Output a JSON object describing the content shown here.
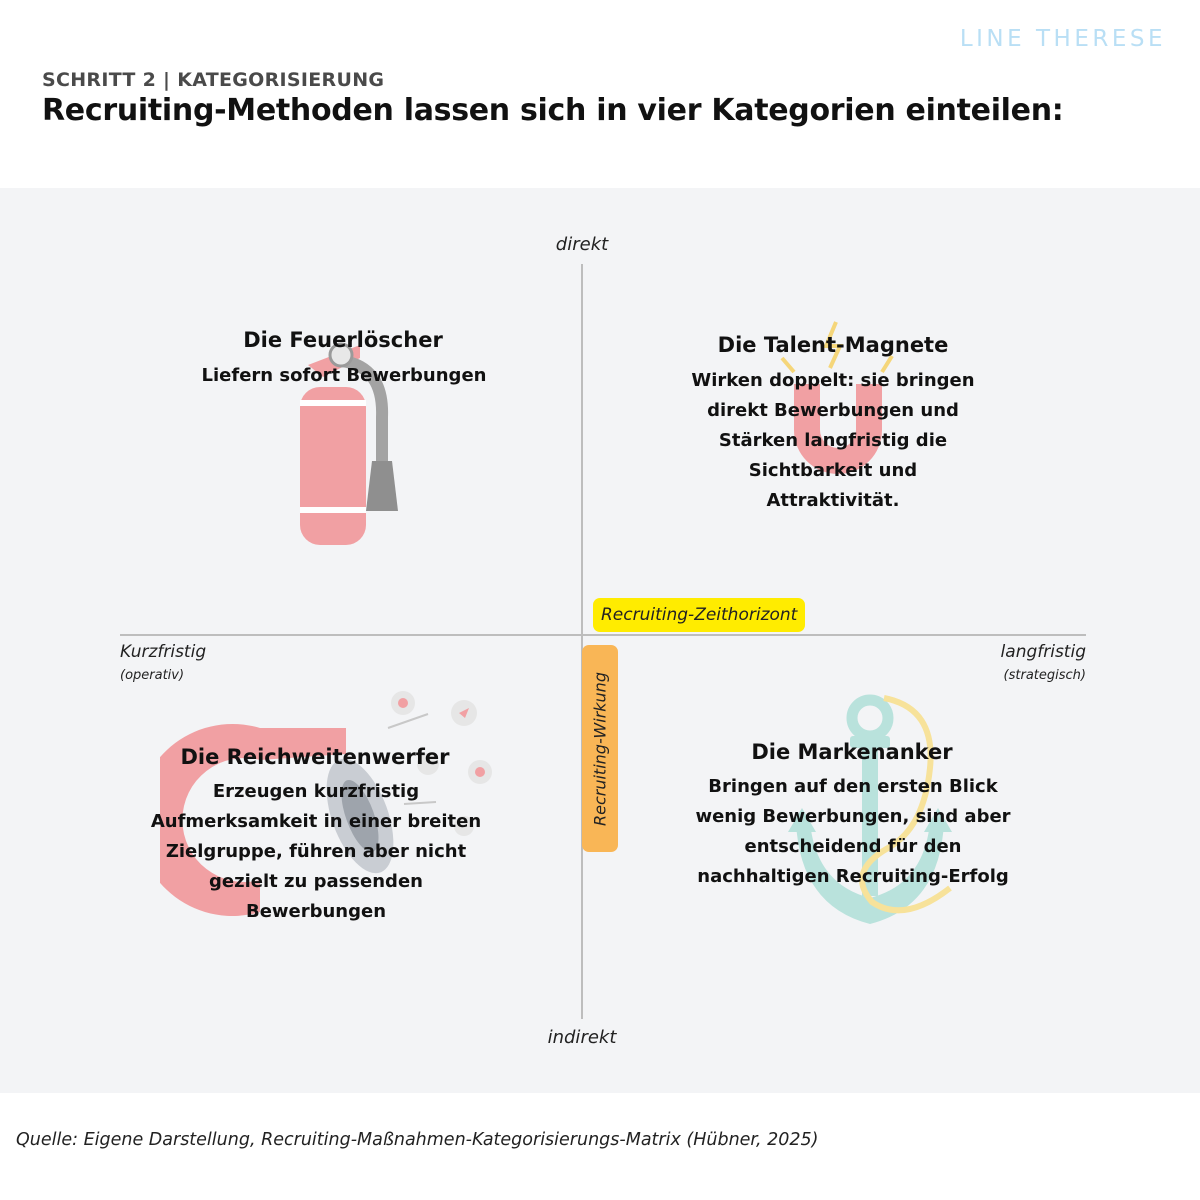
{
  "brand": "LINE THERESE",
  "step_label": "SCHRITT 2 | KATEGORISIERUNG",
  "headline": "Recruiting-Methoden lassen sich in vier Kategorien einteilen:",
  "axes": {
    "top": "direkt",
    "bottom": "indirekt",
    "left": "Kurzfristig",
    "left_sub": "(operativ)",
    "right": "langfristig",
    "right_sub": "(strategisch)",
    "horizontal_axis_badge": "Recruiting-Zeithorizont",
    "vertical_axis_badge": "Recruiting-Wirkung"
  },
  "quadrants": {
    "top_left": {
      "title": "Die Feuerlöscher",
      "lines": [
        "Liefern sofort Bewerbungen"
      ],
      "icon": "fire-extinguisher-icon"
    },
    "top_right": {
      "title": "Die Talent-Magnete",
      "lines": [
        "Wirken doppelt: sie bringen",
        "direkt Bewerbungen und",
        "Stärken langfristig die",
        "Sichtbarkeit und",
        "Attraktivität."
      ],
      "icon": "magnet-icon"
    },
    "bottom_left": {
      "title": "Die Reichweitenwerfer",
      "lines": [
        "Erzeugen kurzfristig",
        "Aufmerksamkeit in einer breiten",
        "Zielgruppe, führen aber nicht",
        "gezielt zu passenden",
        "Bewerbungen"
      ],
      "icon": "megaphone-icon"
    },
    "bottom_right": {
      "title": "Die Markenanker",
      "lines": [
        "Bringen auf den ersten Blick",
        "wenig Bewerbungen, sind aber",
        "entscheidend für den",
        "nachhaltigen Recruiting-Erfolg"
      ],
      "icon": "anchor-icon"
    }
  },
  "source": "Quelle: Eigene Darstellung, Recruiting-Maßnahmen-Kategorisierungs-Matrix (Hübner, 2025)",
  "colors": {
    "panel_background": "#f3f4f6",
    "axis_line": "#bdbdbd",
    "badge_horizontal": "#ffec00",
    "badge_vertical": "#f9b656",
    "brand": "#b9dff5",
    "illustration_red": "#f1a0a3",
    "illustration_teal": "#b9e2dc",
    "illustration_yellow": "#f7e29a"
  }
}
